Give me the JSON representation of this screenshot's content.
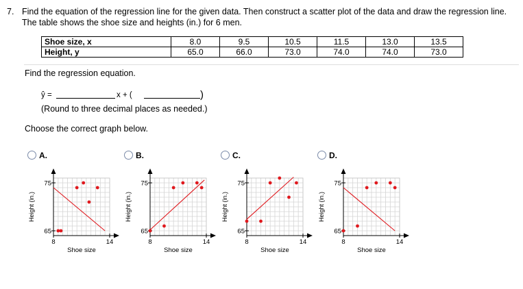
{
  "question": {
    "number": "7.",
    "text": "Find the equation of the regression line for the given data. Then construct a scatter plot of the data and draw the regression line. The table shows the shoe size and heights (in.) for 6 men."
  },
  "table": {
    "rows": [
      {
        "label": "Shoe size, x",
        "values": [
          "8.0",
          "9.5",
          "10.5",
          "11.5",
          "13.0",
          "13.5"
        ]
      },
      {
        "label": "Height, y",
        "values": [
          "65.0",
          "66.0",
          "73.0",
          "74.0",
          "74.0",
          "73.0"
        ]
      }
    ]
  },
  "part1": {
    "prompt": "Find the regression equation.",
    "yhat": "ŷ =",
    "xplus": "x + (",
    "close_paren": ")",
    "hint": "(Round to three decimal places as needed.)",
    "slope_value": "",
    "intercept_value": ""
  },
  "part2": {
    "prompt": "Choose the correct graph below."
  },
  "graph_common": {
    "xlabel": "Shoe size",
    "ylabel": "Height (in.)",
    "x_ticks": [
      "8",
      "14"
    ],
    "y_ticks": [
      "75",
      "65"
    ],
    "point_color": "#e0191e",
    "line_color": "#e0191e"
  },
  "options": [
    {
      "label": "A.",
      "selected": false,
      "chart_data": {
        "type": "scatter",
        "xlim": [
          8,
          14
        ],
        "ylim": [
          64,
          76
        ],
        "x": [
          8.5,
          8.8,
          10.5,
          11.2,
          11.8,
          12.7
        ],
        "y": [
          65,
          65,
          74,
          75,
          71,
          74
        ],
        "line": [
          [
            8,
            74
          ],
          [
            13.5,
            65
          ]
        ],
        "grid": true
      }
    },
    {
      "label": "B.",
      "selected": false,
      "chart_data": {
        "type": "scatter",
        "xlim": [
          8,
          14
        ],
        "ylim": [
          64,
          76
        ],
        "x": [
          8,
          9.5,
          10.5,
          11.5,
          13,
          13.5
        ],
        "y": [
          65,
          66,
          74,
          75,
          75,
          74
        ],
        "line": [
          [
            8,
            65.2
          ],
          [
            13.8,
            75.6
          ]
        ],
        "grid": true
      }
    },
    {
      "label": "C.",
      "selected": false,
      "chart_data": {
        "type": "scatter",
        "xlim": [
          8,
          14
        ],
        "ylim": [
          64,
          76
        ],
        "x": [
          8,
          9.5,
          10.5,
          11.5,
          12.5,
          13.3
        ],
        "y": [
          67,
          67,
          75,
          76,
          72,
          75
        ],
        "line": [
          [
            8,
            67.4
          ],
          [
            13,
            76.2
          ]
        ],
        "grid": true
      }
    },
    {
      "label": "D.",
      "selected": false,
      "chart_data": {
        "type": "scatter",
        "xlim": [
          8,
          14
        ],
        "ylim": [
          64,
          76
        ],
        "x": [
          8,
          9.5,
          10.5,
          11.5,
          13,
          13.5
        ],
        "y": [
          65,
          66,
          74,
          75,
          75,
          74
        ],
        "line": [
          [
            8,
            74
          ],
          [
            13.5,
            65
          ]
        ],
        "grid": true
      }
    }
  ]
}
